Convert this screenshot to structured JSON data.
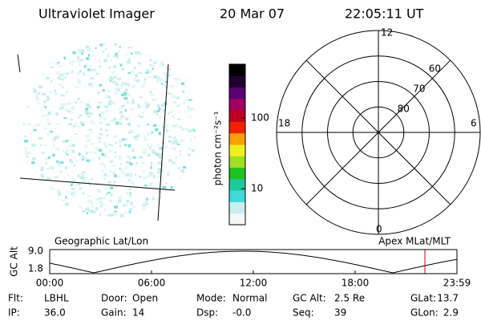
{
  "header": {
    "title": "Ultraviolet Imager",
    "date": "20 Mar 07",
    "time": "22:05:11 UT"
  },
  "colorbar": {
    "label": "photon cm⁻²s⁻¹",
    "scale": "log",
    "lim": [
      3.1,
      575
    ],
    "ticks": [
      10,
      100
    ],
    "colors": [
      "#f4f8f8",
      "#c8eef0",
      "#40d8d8",
      "#20c8a0",
      "#20c020",
      "#a0e020",
      "#f0f020",
      "#f8a000",
      "#f02000",
      "#c00020",
      "#a00060",
      "#5a0070",
      "#200030",
      "#000000"
    ]
  },
  "polar": {
    "mlt_labels": {
      "top": "12",
      "left": "18",
      "right": "6",
      "bottom": "0"
    },
    "lat_labels": [
      80,
      70,
      60
    ]
  },
  "altitude_plot": {
    "y_label": "GC Alt",
    "yticks": [
      "9.0",
      "1.8"
    ],
    "left_title": "Geographic Lat/Lon",
    "right_title": "Apex MLat/MLT",
    "xticks": [
      "00:00",
      "06:00",
      "12:00",
      "18:00",
      "23:59"
    ]
  },
  "footer": {
    "rows": [
      [
        [
          "Flt:",
          "LBHL"
        ],
        [
          "Door:",
          "Open"
        ],
        [
          "Mode:",
          "Normal"
        ],
        [
          "GC Alt:",
          "2.5 Re"
        ],
        [
          "GLat:",
          "13.7"
        ]
      ],
      [
        [
          "IP:",
          "36.0"
        ],
        [
          "Gain:",
          "14"
        ],
        [
          "Dsp:",
          "-0.0"
        ],
        [
          "Seq:",
          "39"
        ],
        [
          "GLon:",
          "2.9"
        ]
      ]
    ]
  }
}
